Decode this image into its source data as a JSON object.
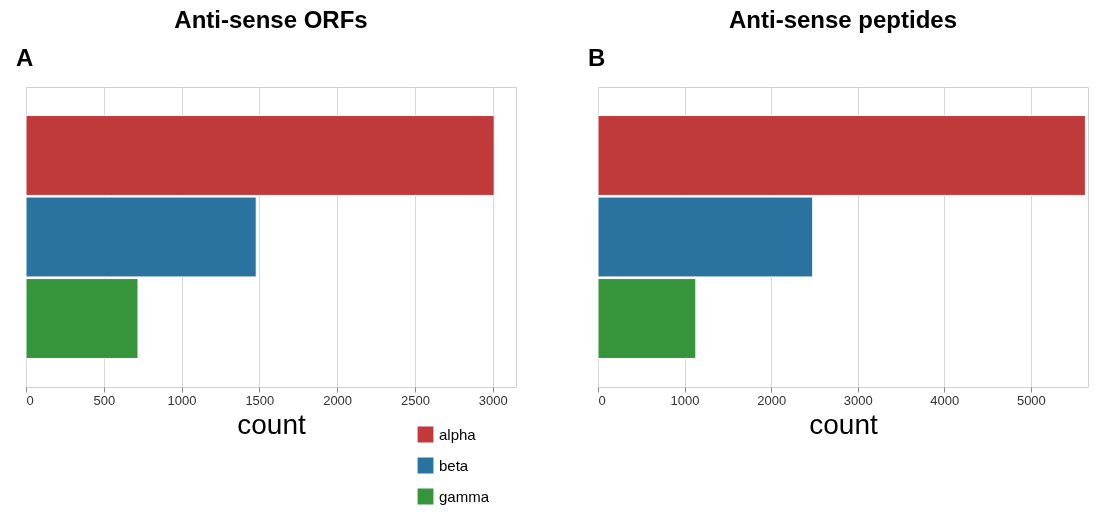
{
  "chart_data": [
    {
      "type": "bar",
      "orientation": "horizontal",
      "title": "Anti-sense ORFs",
      "xlabel": "count",
      "annotations": [
        "A"
      ],
      "categories": [
        null
      ],
      "xlim": [
        0,
        3150
      ],
      "xticks": [
        0,
        500,
        1000,
        1500,
        2000,
        2500,
        3000
      ],
      "grid": "x",
      "legend": "bottom",
      "series": [
        {
          "name": "alpha",
          "color": "#c0393b",
          "values": [
            3010
          ]
        },
        {
          "name": "beta",
          "color": "#2a72a0",
          "values": [
            1480
          ]
        },
        {
          "name": "gamma",
          "color": "#36953a",
          "values": [
            720
          ]
        }
      ]
    },
    {
      "type": "bar",
      "orientation": "horizontal",
      "title": "Anti-sense peptides",
      "xlabel": "count",
      "annotations": [
        "B"
      ],
      "categories": [
        null
      ],
      "xlim": [
        0,
        5660
      ],
      "xticks": [
        0,
        1000,
        2000,
        3000,
        4000,
        5000
      ],
      "grid": "x",
      "legend": "bottom",
      "series": [
        {
          "color": "#c0393b",
          "values": [
            5630
          ]
        },
        {
          "color": "#2a72a0",
          "values": [
            2480
          ]
        },
        {
          "color": "#36953a",
          "values": [
            1130
          ]
        }
      ]
    }
  ]
}
